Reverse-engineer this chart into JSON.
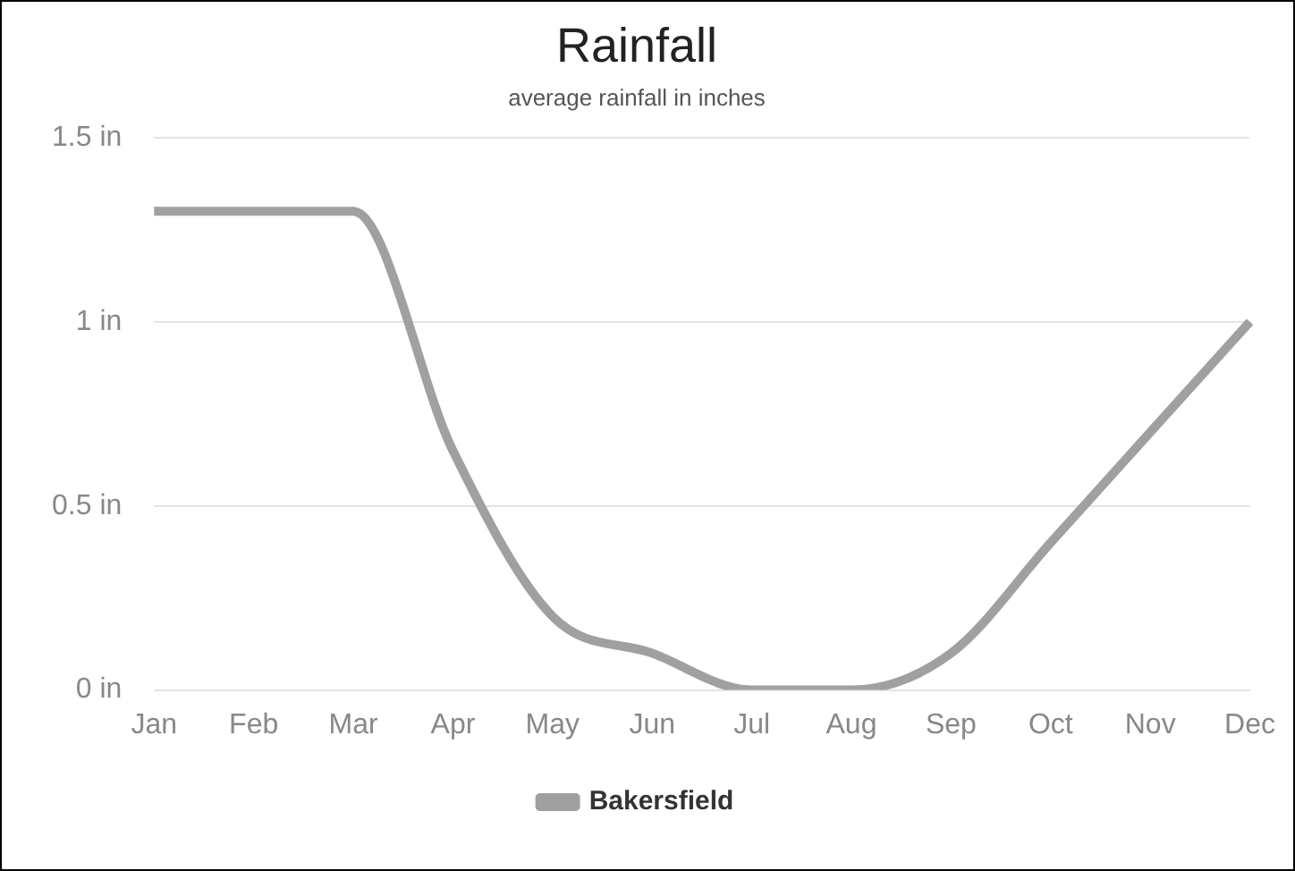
{
  "chart_data": {
    "type": "line",
    "title": "Rainfall",
    "subtitle": "average rainfall in inches",
    "categories": [
      "Jan",
      "Feb",
      "Mar",
      "Apr",
      "May",
      "Jun",
      "Jul",
      "Aug",
      "Sep",
      "Oct",
      "Nov",
      "Dec"
    ],
    "series": [
      {
        "name": "Bakersfield",
        "color": "#a0a0a0",
        "values": [
          1.3,
          1.3,
          1.3,
          0.65,
          0.2,
          0.1,
          0,
          0,
          0.1,
          0.4,
          0.7,
          1.0
        ]
      }
    ],
    "ylim": [
      0,
      1.5
    ],
    "yticks": [
      {
        "value": 0,
        "label": "0 in"
      },
      {
        "value": 0.5,
        "label": "0.5 in"
      },
      {
        "value": 1,
        "label": "1 in"
      },
      {
        "value": 1.5,
        "label": "1.5 in"
      }
    ],
    "grid": "y",
    "legend": "bottom",
    "marker": "none",
    "line_style": "solid"
  }
}
